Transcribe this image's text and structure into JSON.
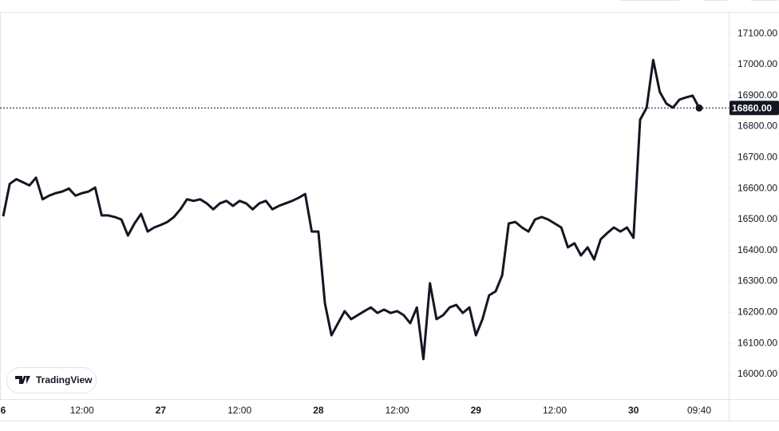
{
  "chart_data": {
    "type": "line",
    "color": "#131722",
    "grid": false,
    "watermark": "TradingView",
    "categories": [
      "6",
      null,
      null,
      null,
      null,
      null,
      null,
      null,
      null,
      null,
      null,
      null,
      "12:00",
      null,
      null,
      null,
      null,
      null,
      null,
      null,
      null,
      null,
      null,
      null,
      "27",
      null,
      null,
      null,
      null,
      null,
      null,
      null,
      null,
      null,
      null,
      null,
      "12:00",
      null,
      null,
      null,
      null,
      null,
      null,
      null,
      null,
      null,
      null,
      null,
      "28",
      null,
      null,
      null,
      null,
      null,
      null,
      null,
      null,
      null,
      null,
      null,
      "12:00",
      null,
      null,
      null,
      null,
      null,
      null,
      null,
      null,
      null,
      null,
      null,
      "29",
      null,
      null,
      null,
      null,
      null,
      null,
      null,
      null,
      null,
      null,
      null,
      "12:00",
      null,
      null,
      null,
      null,
      null,
      null,
      null,
      null,
      null,
      null,
      null,
      "30",
      null,
      null,
      null,
      null,
      null,
      null,
      null,
      null,
      null,
      "09:40"
    ],
    "values": [
      16510,
      16615,
      16630,
      16620,
      16610,
      16635,
      16565,
      16577,
      16585,
      16590,
      16600,
      16577,
      16585,
      16590,
      16603,
      16513,
      16513,
      16508,
      16500,
      16448,
      16487,
      16518,
      16461,
      16474,
      16482,
      16492,
      16508,
      16533,
      16565,
      16560,
      16565,
      16552,
      16533,
      16552,
      16560,
      16544,
      16560,
      16552,
      16533,
      16552,
      16560,
      16533,
      16544,
      16552,
      16560,
      16570,
      16582,
      16461,
      16461,
      16229,
      16126,
      16165,
      16204,
      16178,
      16191,
      16204,
      16216,
      16198,
      16209,
      16198,
      16204,
      16191,
      16165,
      16216,
      16049,
      16294,
      16178,
      16191,
      16216,
      16224,
      16198,
      16216,
      16126,
      16178,
      16255,
      16268,
      16320,
      16487,
      16492,
      16474,
      16461,
      16500,
      16508,
      16500,
      16487,
      16474,
      16410,
      16423,
      16384,
      16410,
      16371,
      16436,
      16456,
      16474,
      16461,
      16474,
      16441,
      16822,
      16861,
      17015,
      16912,
      16874,
      16861,
      16887,
      16894,
      16900,
      16860
    ],
    "last_price": {
      "value": 16860,
      "label": "16860.00"
    },
    "ylim": [
      15920,
      17170
    ],
    "yticks": [
      {
        "value": 16000,
        "label": "16000.00"
      },
      {
        "value": 16100,
        "label": "16100.00"
      },
      {
        "value": 16200,
        "label": "16200.00"
      },
      {
        "value": 16300,
        "label": "16300.00"
      },
      {
        "value": 16400,
        "label": "16400.00"
      },
      {
        "value": 16500,
        "label": "16500.00"
      },
      {
        "value": 16600,
        "label": "16600.00"
      },
      {
        "value": 16700,
        "label": "16700.00"
      },
      {
        "value": 16800,
        "label": "16800.00"
      },
      {
        "value": 16900,
        "label": "16900.00"
      },
      {
        "value": 17000,
        "label": "17000.00"
      },
      {
        "value": 17100,
        "label": "17100.00"
      }
    ]
  }
}
